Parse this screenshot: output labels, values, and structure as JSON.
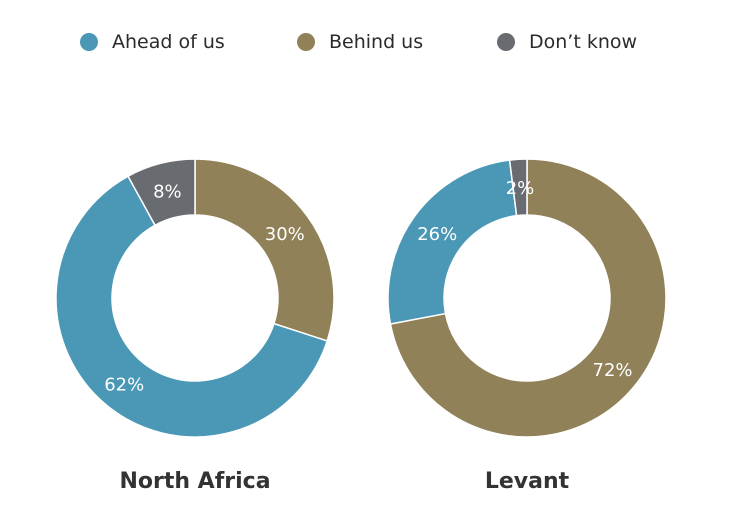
{
  "chart_data": [
    {
      "type": "pie",
      "title": "North Africa",
      "categories": [
        "Ahead of us",
        "Behind us",
        "Don’t know"
      ],
      "values": [
        62,
        30,
        8
      ],
      "value_labels": [
        "62%",
        "30%",
        "8%"
      ],
      "colors": [
        "#4a98b6",
        "#918158",
        "#686b70"
      ],
      "donut": true
    },
    {
      "type": "pie",
      "title": "Levant",
      "categories": [
        "Ahead of us",
        "Behind us",
        "Don’t know"
      ],
      "values": [
        26,
        72,
        2
      ],
      "value_labels": [
        "26%",
        "72%",
        "2%"
      ],
      "colors": [
        "#4a98b6",
        "#918158",
        "#686b70"
      ],
      "donut": true
    }
  ],
  "legend": {
    "items": [
      {
        "label": "Ahead of us",
        "color": "#4a98b6"
      },
      {
        "label": "Behind us",
        "color": "#918158"
      },
      {
        "label": "Don’t know",
        "color": "#686b70"
      }
    ],
    "placement": "top"
  }
}
